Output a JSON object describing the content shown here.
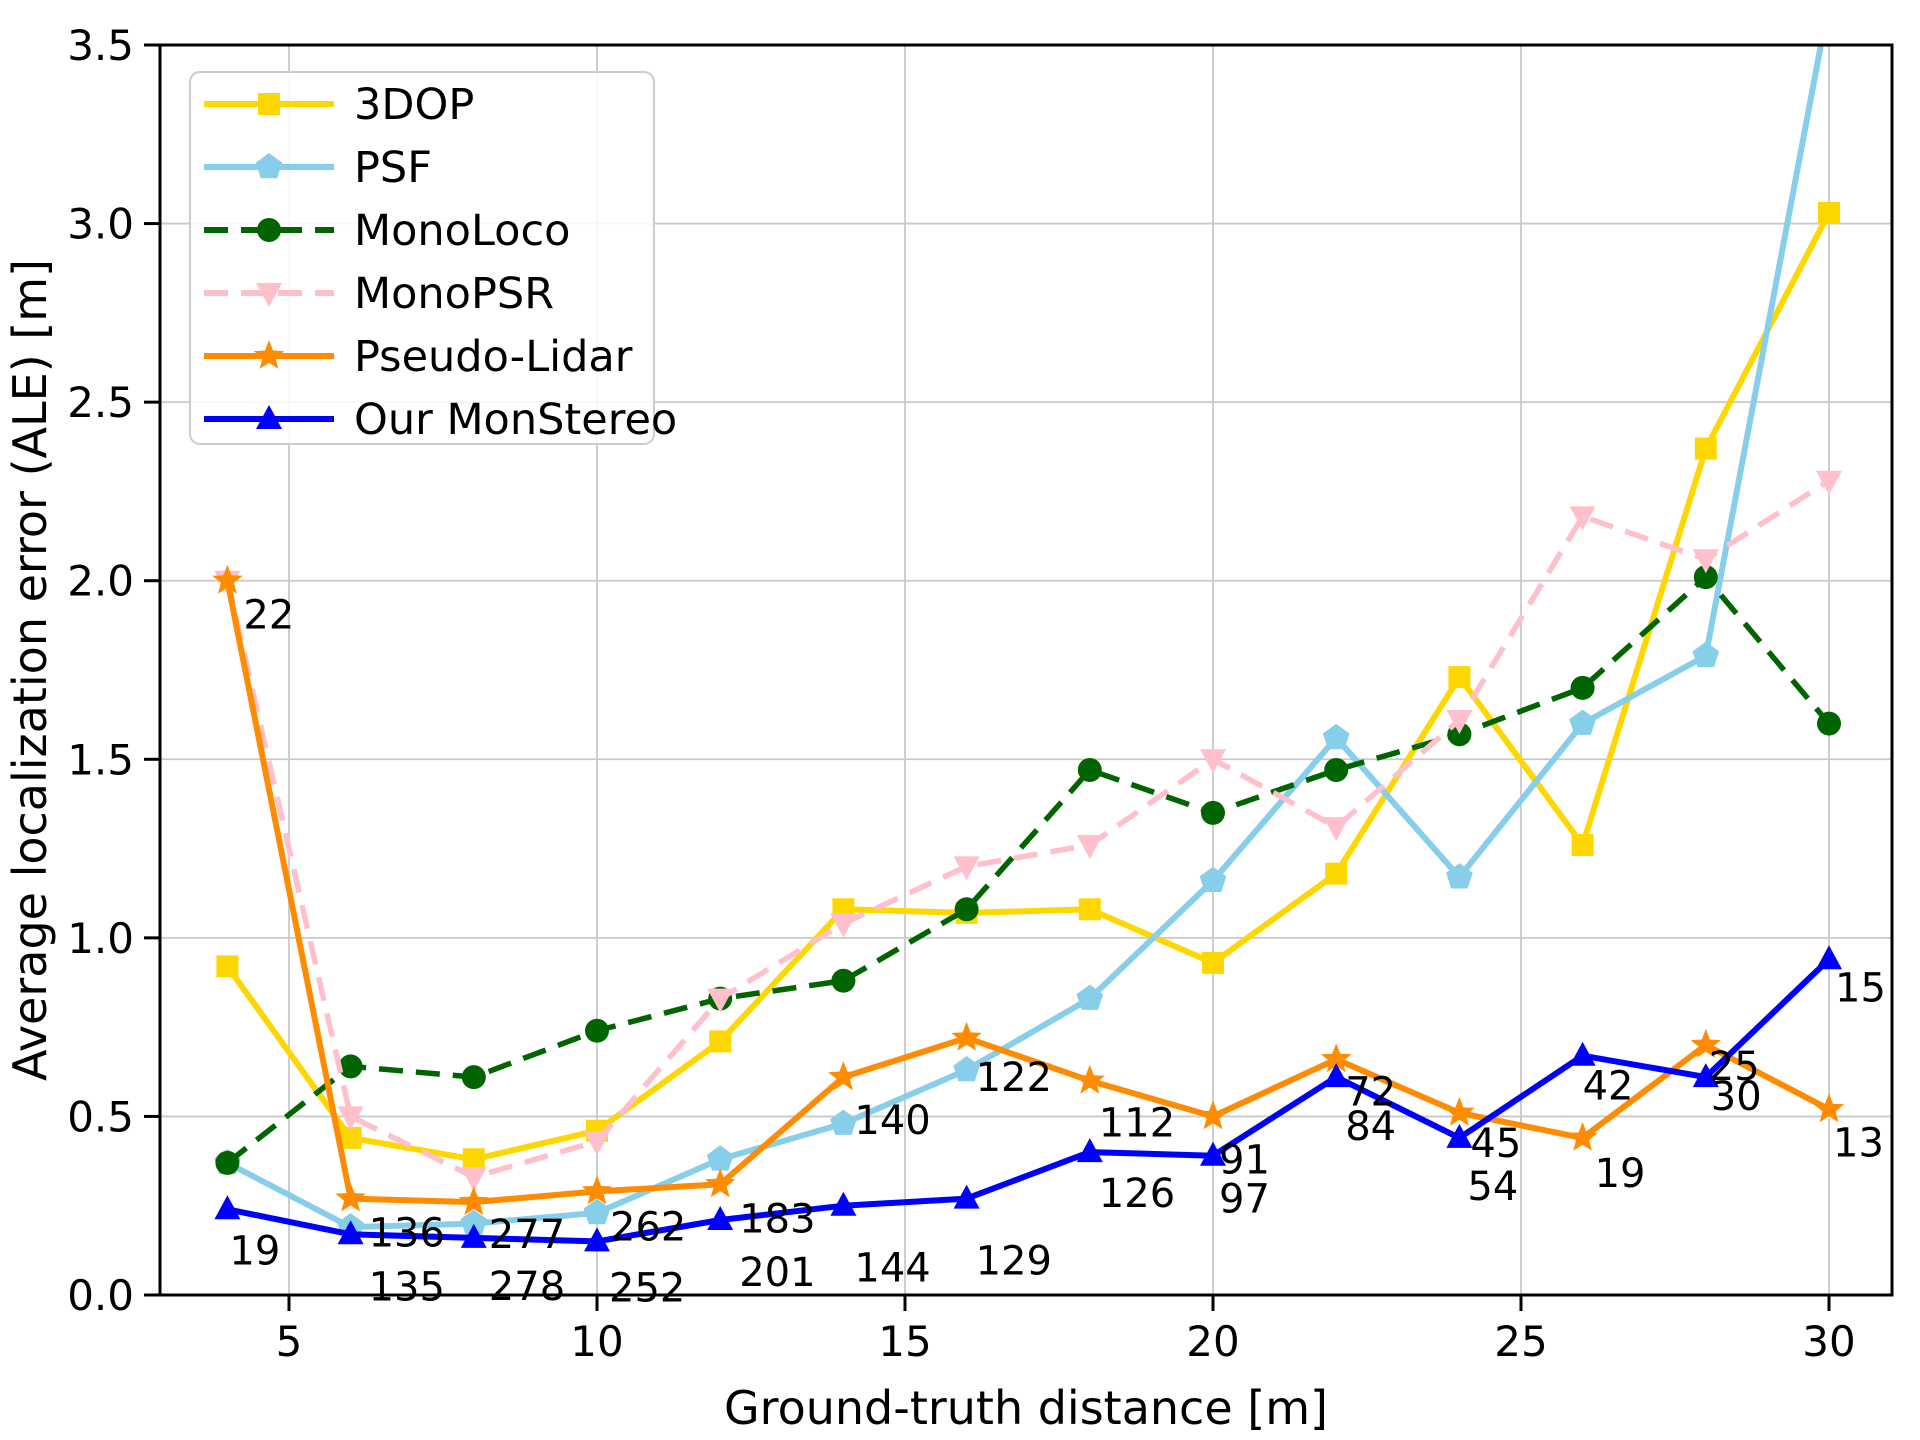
{
  "chart_data": {
    "type": "line",
    "title": "",
    "xlabel": "Ground-truth distance [m]",
    "ylabel": "Average localization error (ALE) [m]",
    "xlim": [
      2.9,
      31.05
    ],
    "ylim": [
      0,
      3.5
    ],
    "grid": true,
    "legend_position": "upper left",
    "x_ticks": [
      "5",
      "10",
      "15",
      "20",
      "25",
      "30"
    ],
    "y_ticks": [
      "0.0",
      "0.5",
      "1.0",
      "1.5",
      "2.0",
      "2.5",
      "3.0",
      "3.5"
    ],
    "x": [
      4,
      6,
      8,
      10,
      12,
      14,
      16,
      18,
      20,
      22,
      24,
      26,
      28,
      30
    ],
    "series": [
      {
        "name": "3DOP",
        "color": "#FFD700",
        "linestyle": "solid",
        "marker": "square",
        "values": [
          0.92,
          0.44,
          0.38,
          0.46,
          0.71,
          1.08,
          1.07,
          1.08,
          0.93,
          1.18,
          1.73,
          1.26,
          2.37,
          3.03
        ]
      },
      {
        "name": "PSF",
        "color": "#87CEEB",
        "linestyle": "solid",
        "marker": "pentagon",
        "values": [
          0.37,
          0.19,
          0.2,
          0.23,
          0.38,
          0.48,
          0.63,
          0.83,
          1.16,
          1.56,
          1.17,
          1.6,
          1.79,
          3.62
        ]
      },
      {
        "name": "MonoLoco",
        "color": "#006400",
        "linestyle": "dashed",
        "marker": "circle",
        "values": [
          0.37,
          0.64,
          0.61,
          0.74,
          0.83,
          0.88,
          1.08,
          1.47,
          1.35,
          1.47,
          1.57,
          1.7,
          2.01,
          1.6
        ]
      },
      {
        "name": "MonoPSR",
        "color": "#FFC0CB",
        "linestyle": "dashed",
        "marker": "triangle-down",
        "values": [
          2.0,
          0.5,
          0.33,
          0.43,
          0.83,
          1.04,
          1.2,
          1.26,
          1.5,
          1.31,
          1.61,
          2.18,
          2.06,
          2.28
        ]
      },
      {
        "name": "Pseudo-Lidar",
        "color": "#FF8C00",
        "linestyle": "solid",
        "marker": "star",
        "values": [
          2.0,
          0.27,
          0.26,
          0.29,
          0.31,
          0.61,
          0.72,
          0.6,
          0.5,
          0.66,
          0.51,
          0.44,
          0.7,
          0.52
        ],
        "point_labels": [
          "22",
          "136",
          "277",
          "262",
          "183",
          "140",
          "122",
          "112",
          "91",
          "72",
          "45",
          "19",
          "25",
          "13"
        ]
      },
      {
        "name": "Our MonStereo",
        "color": "#0000FF",
        "linestyle": "solid",
        "marker": "triangle-up",
        "values": [
          0.24,
          0.17,
          0.16,
          0.15,
          0.21,
          0.25,
          0.27,
          0.4,
          0.39,
          0.61,
          0.44,
          0.67,
          0.61,
          0.94
        ],
        "point_labels": [
          "19",
          "135",
          "278",
          "252",
          "201",
          "144",
          "129",
          "126",
          "97",
          "84",
          "54",
          "42",
          "30",
          "15"
        ]
      }
    ],
    "legend_entries": [
      "3DOP",
      "PSF",
      "MonoLoco",
      "MonoPSR",
      "Pseudo-Lidar",
      "Our MonStereo"
    ]
  }
}
